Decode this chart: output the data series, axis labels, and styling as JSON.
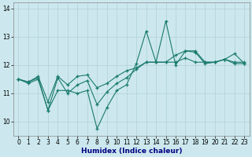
{
  "title": "",
  "xlabel": "Humidex (Indice chaleur)",
  "ylabel": "",
  "xlim": [
    -0.5,
    23.5
  ],
  "ylim": [
    9.5,
    14.2
  ],
  "yticks": [
    10,
    11,
    12,
    13,
    14
  ],
  "xticks": [
    0,
    1,
    2,
    3,
    4,
    5,
    6,
    7,
    8,
    9,
    10,
    11,
    12,
    13,
    14,
    15,
    16,
    17,
    18,
    19,
    20,
    21,
    22,
    23
  ],
  "bg_color": "#cce8ee",
  "grid_color": "#b0d0d8",
  "line_color": "#1a7a6e",
  "series": [
    {
      "x": [
        0,
        1,
        2,
        3,
        4,
        5,
        6,
        7,
        8,
        9,
        10,
        11,
        12,
        13,
        14,
        15,
        16,
        17,
        18,
        19,
        20,
        21,
        22,
        23
      ],
      "y": [
        11.5,
        11.35,
        11.5,
        10.4,
        11.1,
        11.1,
        11.0,
        11.1,
        9.75,
        10.5,
        11.1,
        11.3,
        12.05,
        13.2,
        12.1,
        13.55,
        12.0,
        12.5,
        12.45,
        12.05,
        12.1,
        12.2,
        12.4,
        12.05
      ]
    },
    {
      "x": [
        0,
        1,
        2,
        3,
        4,
        5,
        6,
        7,
        8,
        9,
        10,
        11,
        12,
        13,
        14,
        15,
        16,
        17,
        18,
        19,
        20,
        21,
        22,
        23
      ],
      "y": [
        11.5,
        11.4,
        11.55,
        10.4,
        11.55,
        11.0,
        11.3,
        11.45,
        10.6,
        11.05,
        11.35,
        11.55,
        11.85,
        12.1,
        12.1,
        12.1,
        12.1,
        12.25,
        12.1,
        12.1,
        12.1,
        12.2,
        12.05,
        12.05
      ]
    },
    {
      "x": [
        0,
        1,
        2,
        3,
        4,
        5,
        6,
        7,
        8,
        9,
        10,
        11,
        12,
        13,
        14,
        15,
        16,
        17,
        18,
        19,
        20,
        21,
        22,
        23
      ],
      "y": [
        11.5,
        11.4,
        11.6,
        10.7,
        11.6,
        11.3,
        11.6,
        11.65,
        11.2,
        11.35,
        11.6,
        11.8,
        11.9,
        12.1,
        12.1,
        12.1,
        12.35,
        12.5,
        12.5,
        12.1,
        12.1,
        12.2,
        12.1,
        12.1
      ]
    }
  ],
  "xlabel_fontsize": 6.5,
  "tick_fontsize": 5.5
}
